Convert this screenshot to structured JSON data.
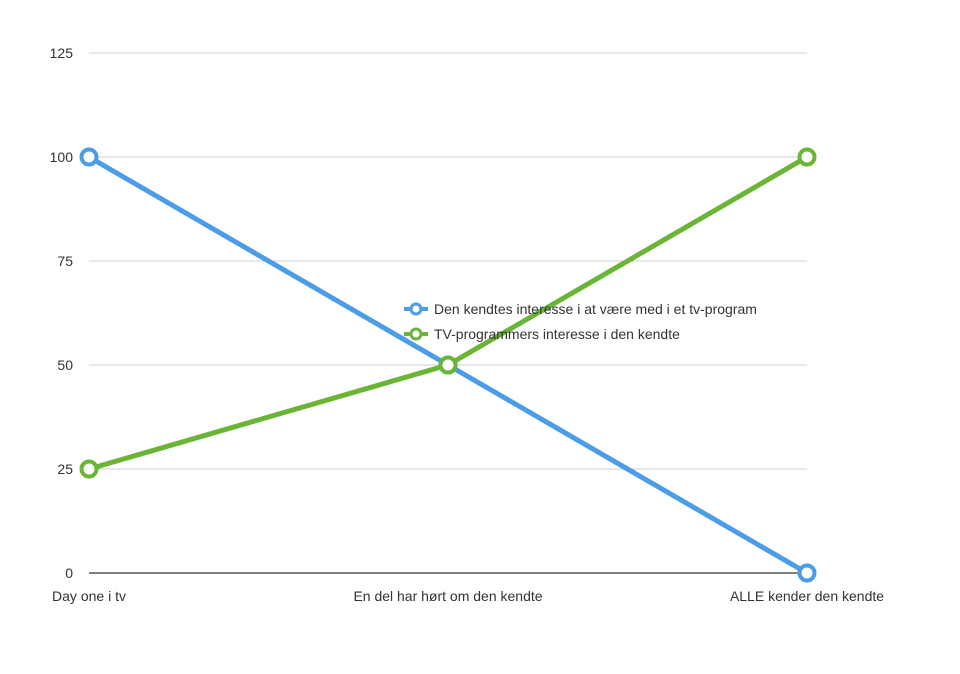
{
  "chart_data": {
    "type": "line",
    "categories": [
      "Day one i tv",
      "En del har hørt om den kendte",
      "ALLE kender den kendte"
    ],
    "series": [
      {
        "name": "Den kendtes interesse i at være med i et tv-program",
        "values": [
          100,
          50,
          0
        ],
        "color": "#4a9de6"
      },
      {
        "name": "TV-programmers interesse i den kendte",
        "values": [
          25,
          50,
          100
        ],
        "color": "#6ab536"
      }
    ],
    "yticks": [
      0,
      25,
      50,
      75,
      100,
      125
    ],
    "ylim": [
      0,
      125
    ],
    "grid": true,
    "legend": "center"
  }
}
